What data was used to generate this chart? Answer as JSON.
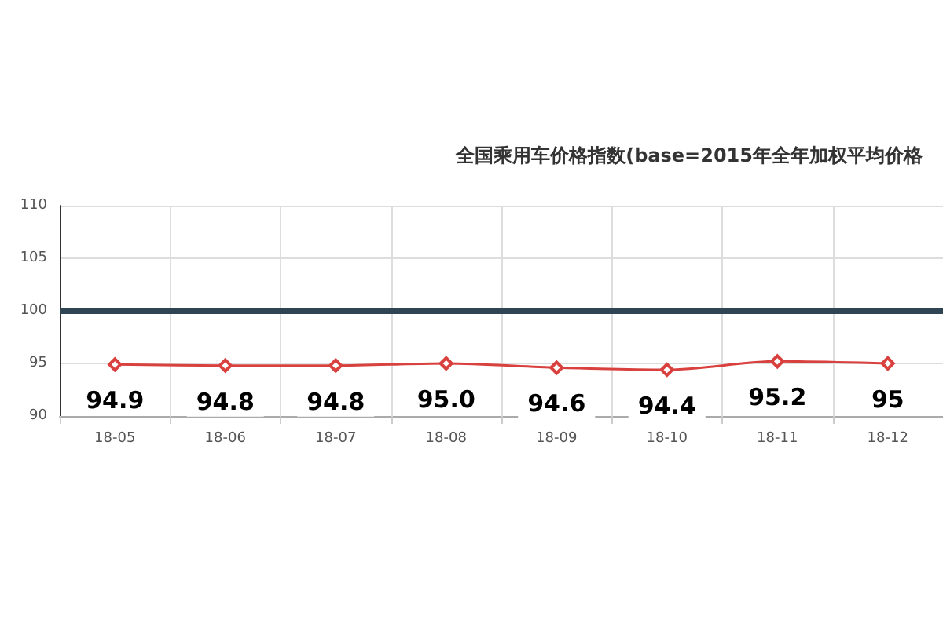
{
  "chart_data": {
    "type": "line",
    "title": "全国乘用车价格指数(base=2015年全年加权平均价格",
    "categories": [
      "18-05",
      "18-06",
      "18-07",
      "18-08",
      "18-09",
      "18-10",
      "18-11",
      "18-12"
    ],
    "series": [
      {
        "color": "#d9413f",
        "values": [
          94.9,
          94.8,
          94.8,
          95.0,
          94.6,
          94.4,
          95.2,
          95.0
        ],
        "value_labels": [
          "94.9",
          "94.8",
          "94.8",
          "95.0",
          "94.6",
          "94.4",
          "95.2",
          "95"
        ]
      }
    ],
    "ylim": [
      90,
      110
    ],
    "yticks": [
      90,
      95,
      100,
      105,
      110
    ],
    "ref_lines": [
      {
        "axis": "y",
        "value": 100,
        "color": "#2f4554"
      }
    ],
    "grid": true,
    "marker": "diamond",
    "line_style": "solid"
  }
}
